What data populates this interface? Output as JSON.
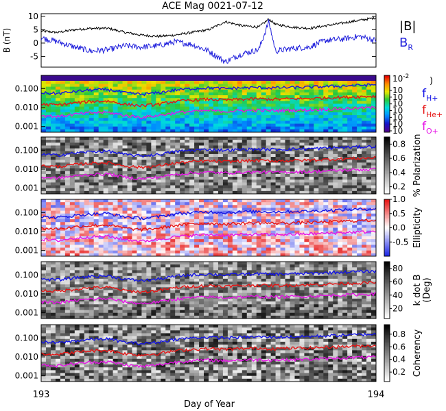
{
  "title": "ACE Mag 0021-07-12",
  "colors": {
    "B_total": "#000000",
    "B_R": "#1f1fdc",
    "f_H": "#1414e6",
    "f_He": "#e61414",
    "f_O": "#e614e6"
  },
  "xaxis": {
    "label": "Day of Year",
    "start_label": "193",
    "end_label": "194",
    "range": [
      193,
      194
    ]
  },
  "chart_data": [
    {
      "type": "line",
      "panel": "magnetic-field",
      "ylabel": "B (nT)",
      "ylim": [
        -9,
        11
      ],
      "yticks": [
        "10",
        "5",
        "0",
        "-5"
      ],
      "yticks_values": [
        10,
        5,
        0,
        -5
      ],
      "x": [
        193.0,
        193.05,
        193.1,
        193.15,
        193.2,
        193.25,
        193.3,
        193.35,
        193.4,
        193.45,
        193.5,
        193.55,
        193.6,
        193.65,
        193.68,
        193.7,
        193.75,
        193.8,
        193.85,
        193.9,
        193.95,
        194.0
      ],
      "series": [
        {
          "name": "|B|",
          "color": "#000000",
          "values": [
            4.5,
            4.0,
            5.0,
            5.5,
            5.5,
            4.0,
            3.0,
            2.5,
            3.0,
            4.0,
            5.0,
            8.0,
            6.5,
            6.0,
            9.0,
            7.0,
            6.0,
            5.5,
            6.5,
            7.5,
            8.5,
            9.5
          ]
        },
        {
          "name": "B_R",
          "color": "#1f1fdc",
          "values": [
            2.0,
            0.5,
            -1.5,
            -3.0,
            -2.5,
            -1.0,
            -1.5,
            -1.0,
            0.5,
            -0.5,
            -3.0,
            -7.0,
            -4.0,
            -2.5,
            8.0,
            -3.0,
            -2.0,
            -1.5,
            1.0,
            1.5,
            2.5,
            1.0
          ]
        }
      ],
      "legend": [
        {
          "text": "|B|",
          "color": "#000000"
        },
        {
          "text": "B",
          "sub": "R",
          "color": "#1f1fdc"
        }
      ]
    },
    {
      "type": "heatmap",
      "panel": "power",
      "yscale": "log",
      "ylim": [
        0.0005,
        0.5
      ],
      "yticks": [
        "0.100",
        "0.010",
        "0.001"
      ],
      "yticks_values": [
        0.1,
        0.01,
        0.001
      ],
      "colorbar": {
        "ticks": [
          "10",
          "10",
          "10",
          "10",
          "10",
          "10",
          "10"
        ],
        "top_label": "10",
        "top_exp": "-2",
        "label_fragment": ")"
      },
      "legend": [
        {
          "text": "f",
          "sub": "H+",
          "color": "#1414e6"
        },
        {
          "text": "f",
          "sub": "He+",
          "color": "#e61414"
        },
        {
          "text": "f",
          "sub": "O+",
          "color": "#e614e6"
        }
      ],
      "gyrofrequency_lines": [
        {
          "name": "f_H+",
          "color": "#1414e6",
          "values": [
            0.06,
            0.055,
            0.07,
            0.085,
            0.09,
            0.06,
            0.05,
            0.06,
            0.085,
            0.1,
            0.11,
            0.1,
            0.11,
            0.115,
            0.11,
            0.11,
            0.115,
            0.12,
            0.13,
            0.14,
            0.15,
            0.16
          ]
        },
        {
          "name": "f_He+",
          "color": "#e61414",
          "values": [
            0.015,
            0.0138,
            0.0175,
            0.021,
            0.022,
            0.015,
            0.0125,
            0.015,
            0.021,
            0.025,
            0.0275,
            0.025,
            0.0275,
            0.029,
            0.0275,
            0.0275,
            0.029,
            0.03,
            0.0325,
            0.035,
            0.0375,
            0.04
          ]
        },
        {
          "name": "f_O+",
          "color": "#e614e6",
          "values": [
            0.0038,
            0.0034,
            0.0044,
            0.0053,
            0.0056,
            0.0038,
            0.0031,
            0.0038,
            0.0053,
            0.0063,
            0.0069,
            0.0063,
            0.0069,
            0.0072,
            0.0069,
            0.0069,
            0.0072,
            0.0075,
            0.0081,
            0.0088,
            0.0094,
            0.01
          ]
        }
      ]
    },
    {
      "type": "heatmap",
      "panel": "polarization",
      "yscale": "log",
      "ylim": [
        0.0005,
        0.5
      ],
      "yticks": [
        "0.100",
        "0.010",
        "0.001"
      ],
      "colorbar": {
        "label": "% Polarization",
        "ticks": [
          "0.8",
          "0.6",
          "0.4",
          "0.2"
        ],
        "tick_values": [
          0.8,
          0.6,
          0.4,
          0.2
        ],
        "range": [
          0.1,
          0.9
        ]
      }
    },
    {
      "type": "heatmap",
      "panel": "ellipticity",
      "yscale": "log",
      "ylim": [
        0.0005,
        0.5
      ],
      "yticks": [
        "0.100",
        "0.010",
        "0.001"
      ],
      "colorbar": {
        "label": "Ellipticity",
        "ticks": [
          "1.0",
          "0.5",
          "0.0",
          "-0.5"
        ],
        "tick_values": [
          1.0,
          0.5,
          0.0,
          -0.5
        ],
        "range": [
          -1,
          1
        ]
      }
    },
    {
      "type": "heatmap",
      "panel": "k-dot-b",
      "yscale": "log",
      "ylim": [
        0.0005,
        0.5
      ],
      "yticks": [
        "0.100",
        "0.010",
        "0.001"
      ],
      "colorbar": {
        "label": "k dot B",
        "label2": "(Deg)",
        "ticks": [
          "80",
          "60",
          "40",
          "20"
        ],
        "tick_values": [
          80,
          60,
          40,
          20
        ],
        "range": [
          5,
          90
        ]
      }
    },
    {
      "type": "heatmap",
      "panel": "coherency",
      "yscale": "log",
      "ylim": [
        0.0005,
        0.5
      ],
      "yticks": [
        "0.100",
        "0.010",
        "0.001"
      ],
      "colorbar": {
        "label": "Coherency",
        "ticks": [
          "0.8",
          "0.6",
          "0.4",
          "0.2"
        ],
        "tick_values": [
          0.8,
          0.6,
          0.4,
          0.2
        ],
        "range": [
          0.05,
          0.95
        ]
      }
    }
  ]
}
